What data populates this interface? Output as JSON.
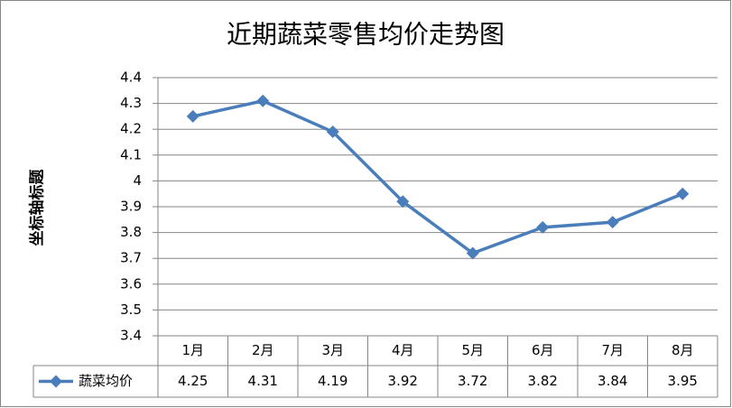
{
  "chart_data": {
    "type": "line",
    "title": "近期蔬菜零售均价走势图",
    "y_axis_label": "坐标轴标题",
    "categories": [
      "1月",
      "2月",
      "3月",
      "4月",
      "5月",
      "6月",
      "7月",
      "8月"
    ],
    "series": [
      {
        "name": "蔬菜均价",
        "color": "#4a7ebb",
        "values": [
          4.25,
          4.31,
          4.19,
          3.92,
          3.72,
          3.82,
          3.84,
          3.95
        ]
      }
    ],
    "ylim": [
      3.4,
      4.4
    ],
    "yticks": [
      3.4,
      3.5,
      3.6,
      3.7,
      3.8,
      3.9,
      4,
      4.1,
      4.2,
      4.3,
      4.4
    ],
    "grid": true,
    "data_table": true
  }
}
